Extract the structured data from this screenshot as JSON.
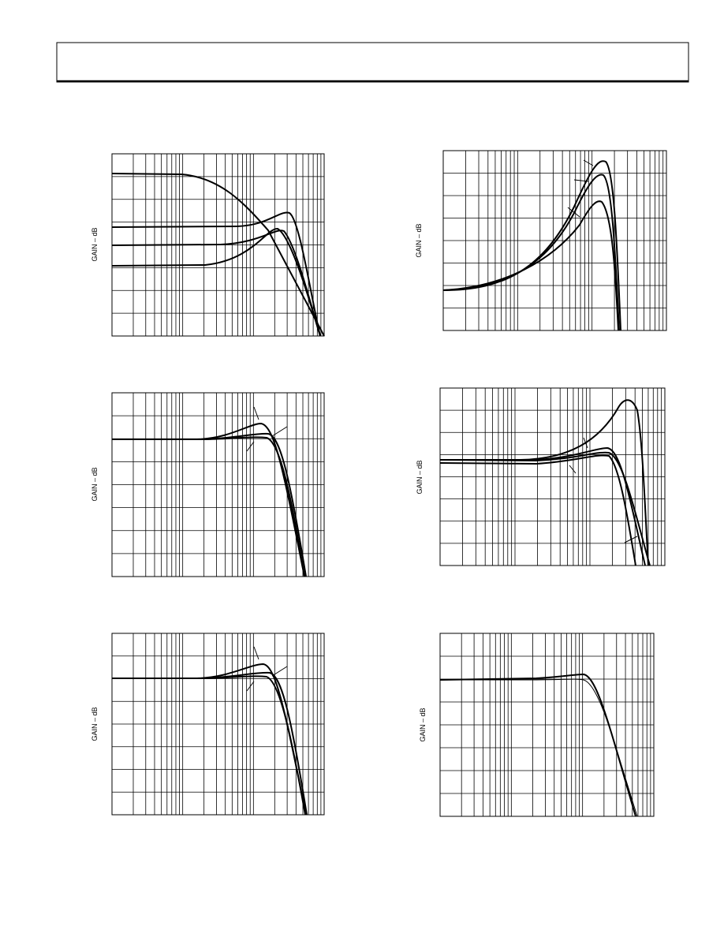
{
  "panels": [
    {
      "y_label": "GAIN – dB"
    },
    {
      "y_label": "GAIN – dB"
    },
    {
      "y_label": "GAIN – dB"
    },
    {
      "y_label": "GAIN – dB"
    },
    {
      "y_label": "GAIN – dB"
    },
    {
      "y_label": "GAIN – dB"
    }
  ]
}
